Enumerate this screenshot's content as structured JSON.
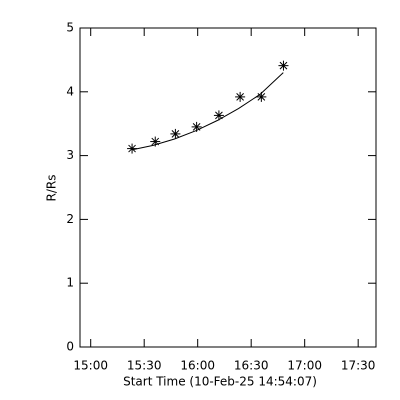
{
  "chart_data": {
    "type": "scatter",
    "xlabel": "Start Time (10-Feb-25 14:54:07)",
    "ylabel": "R/Rs",
    "xlim": [
      894,
      1060
    ],
    "ylim": [
      0,
      5
    ],
    "xticks": [
      {
        "value": 900,
        "label": "15:00"
      },
      {
        "value": 930,
        "label": "15:30"
      },
      {
        "value": 960,
        "label": "16:00"
      },
      {
        "value": 990,
        "label": "16:30"
      },
      {
        "value": 1020,
        "label": "17:00"
      },
      {
        "value": 1050,
        "label": "17:30"
      }
    ],
    "yticks": [
      0,
      1,
      2,
      3,
      4,
      5
    ],
    "color": "#000000",
    "series": [
      {
        "marker": "asterisk",
        "x": [
          923.2,
          936.2,
          947.5,
          959.4,
          971.9,
          983.8,
          995.7,
          1008.1
        ],
        "values": [
          3.11,
          3.22,
          3.34,
          3.45,
          3.63,
          3.92,
          3.92,
          4.41
        ]
      },
      {
        "marker": "line",
        "x": [
          923,
          935,
          947,
          959,
          971,
          983,
          995,
          1008
        ],
        "values": [
          3.09,
          3.16,
          3.26,
          3.39,
          3.55,
          3.74,
          3.96,
          4.3
        ]
      }
    ]
  }
}
